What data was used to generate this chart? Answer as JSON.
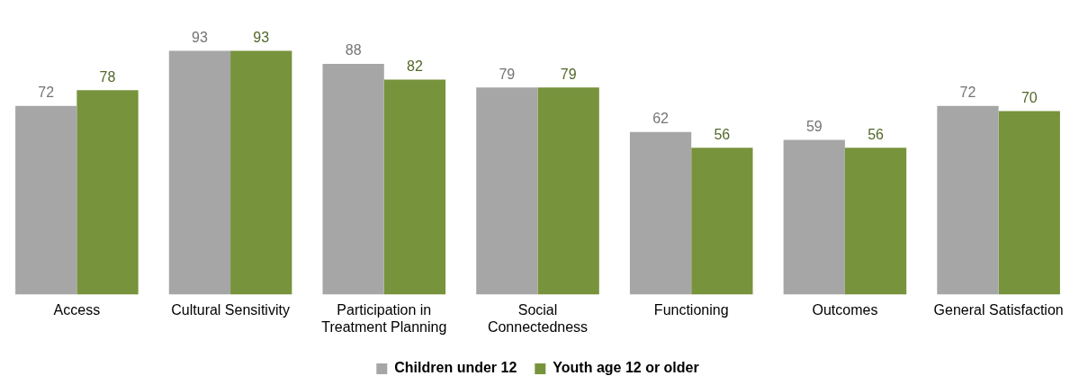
{
  "chart_data": {
    "type": "bar",
    "categories": [
      "Access",
      "Cultural Sensitivity",
      "Participation in Treatment Planning",
      "Social Connectedness",
      "Functioning",
      "Outcomes",
      "General Satisfaction"
    ],
    "series": [
      {
        "name": "Children under 12",
        "color": "#a6a6a6",
        "values": [
          72,
          93,
          88,
          79,
          62,
          59,
          72
        ]
      },
      {
        "name": "Youth age 12 or older",
        "color": "#77933c",
        "values": [
          78,
          93,
          82,
          79,
          56,
          56,
          70
        ]
      }
    ],
    "data_labels": true,
    "grid": false,
    "legend": "bottom",
    "tick_labels": "x"
  }
}
